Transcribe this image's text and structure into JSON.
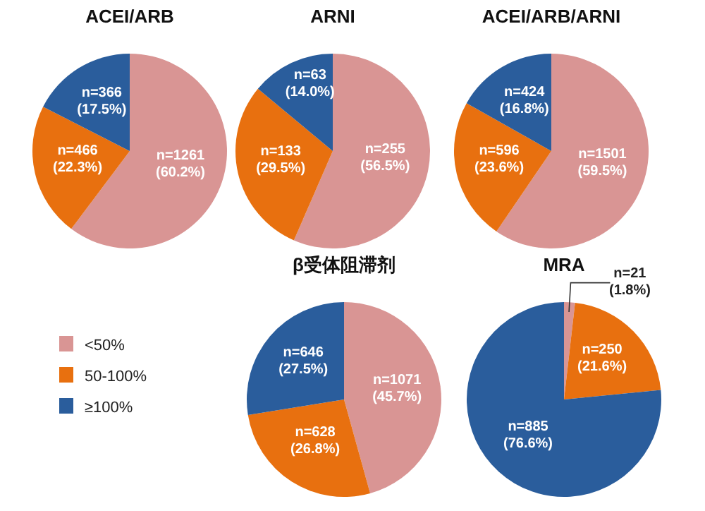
{
  "chart_data": [
    {
      "type": "pie",
      "title": "ACEI/ARB",
      "categories": [
        null,
        null,
        null
      ],
      "values": [
        1261,
        466,
        366
      ],
      "colors": [
        "#d99594",
        "#e8700f",
        "#2a5d9c"
      ],
      "value_labels": [
        "n=1261 (60.2%)",
        "n=466 (22.3%)",
        "n=366 (17.5%)"
      ]
    },
    {
      "type": "pie",
      "title": "ARNI",
      "categories": [
        null,
        null,
        null
      ],
      "values": [
        255,
        133,
        63
      ],
      "colors": [
        "#d99594",
        "#e8700f",
        "#2a5d9c"
      ],
      "value_labels": [
        "n=255 (56.5%)",
        "n=133 (29.5%)",
        "n=63 (14.0%)"
      ]
    },
    {
      "type": "pie",
      "title": "ACEI/ARB/ARNI",
      "categories": [
        null,
        null,
        null
      ],
      "values": [
        1501,
        596,
        424
      ],
      "colors": [
        "#d99594",
        "#e8700f",
        "#2a5d9c"
      ],
      "value_labels": [
        "n=1501 (59.5%)",
        "n=596 (23.6%)",
        "n=424 (16.8%)"
      ]
    },
    {
      "type": "pie",
      "title": "β受体阻滞剂",
      "categories": [
        "<50%",
        "50-100%",
        "≥100%"
      ],
      "values": [
        1071,
        628,
        646
      ],
      "colors": [
        "#d99594",
        "#e8700f",
        "#2a5d9c"
      ],
      "value_labels": [
        "n=1071 (45.7%)",
        "n=628 (26.8%)",
        "n=646 (27.5%)"
      ],
      "legend": "left"
    },
    {
      "type": "pie",
      "title": "MRA",
      "categories": [
        null,
        null,
        null
      ],
      "values": [
        21,
        250,
        885
      ],
      "colors": [
        "#d99594",
        "#e8700f",
        "#2a5d9c"
      ],
      "value_labels": [
        "n=21 (1.8%)",
        "n=250 (21.6%)",
        "n=885 (76.6%)"
      ]
    }
  ]
}
